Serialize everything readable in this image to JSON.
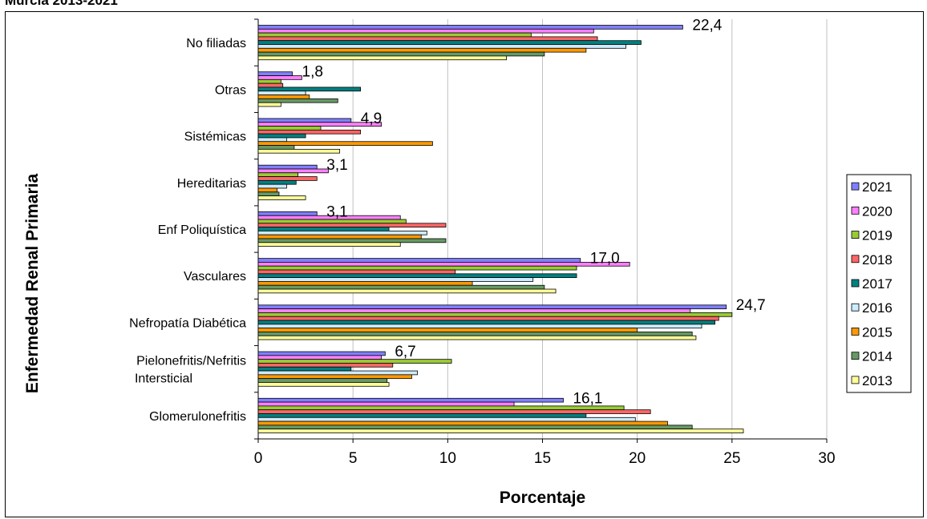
{
  "chart_data": {
    "type": "bar",
    "orientation": "horizontal",
    "title_fragment": "Murcia 2013-2021",
    "xlabel": "Porcentaje",
    "ylabel": "Enfermedad Renal Primaria",
    "xlim": [
      0,
      30
    ],
    "xticks": [
      "0",
      "5",
      "10",
      "15",
      "20",
      "25",
      "30"
    ],
    "grid": "vertical",
    "legend_position": "right",
    "categories": [
      "No filiadas",
      "Otras",
      "Sistémicas",
      "Hereditarias",
      "Enf Poliquística",
      "Vasculares",
      "Nefropatía Diabética",
      "Pielonefritis/Nefritis Intersticial",
      "Glomerulonefritis"
    ],
    "category_lines": [
      [
        "No filiadas"
      ],
      [
        "Otras"
      ],
      [
        "Sistémicas"
      ],
      [
        "Hereditarias"
      ],
      [
        "Enf Poliquística"
      ],
      [
        "Vasculares"
      ],
      [
        "Nefropatía Diabética"
      ],
      [
        "Pielonefritis/Nefritis",
        "Intersticial"
      ],
      [
        "Glomerulonefritis"
      ]
    ],
    "series": [
      {
        "name": "2021",
        "color": "#8080ff",
        "values": [
          22.4,
          1.8,
          4.9,
          3.1,
          3.1,
          17.0,
          24.7,
          6.7,
          16.1
        ]
      },
      {
        "name": "2020",
        "color": "#ff80ff",
        "values": [
          17.7,
          2.3,
          6.5,
          3.7,
          7.5,
          19.6,
          22.8,
          6.5,
          13.5
        ]
      },
      {
        "name": "2019",
        "color": "#99cc33",
        "values": [
          14.4,
          1.2,
          3.3,
          2.1,
          7.8,
          16.8,
          25.0,
          10.2,
          19.3
        ]
      },
      {
        "name": "2018",
        "color": "#ff6666",
        "values": [
          17.9,
          1.3,
          5.4,
          3.1,
          9.9,
          10.4,
          24.3,
          7.1,
          20.7
        ]
      },
      {
        "name": "2017",
        "color": "#008080",
        "values": [
          20.2,
          5.4,
          2.5,
          2.0,
          6.9,
          16.8,
          24.1,
          4.9,
          17.3
        ]
      },
      {
        "name": "2016",
        "color": "#ccecff",
        "values": [
          19.4,
          2.5,
          1.5,
          1.5,
          8.9,
          14.5,
          23.4,
          8.4,
          19.9
        ]
      },
      {
        "name": "2015",
        "color": "#ff9900",
        "values": [
          17.3,
          2.7,
          9.2,
          1.0,
          8.6,
          11.3,
          20.0,
          8.1,
          21.6
        ]
      },
      {
        "name": "2014",
        "color": "#669966",
        "values": [
          15.1,
          4.2,
          1.9,
          1.1,
          9.9,
          15.1,
          22.9,
          6.8,
          22.9
        ]
      },
      {
        "name": "2013",
        "color": "#ffff99",
        "values": [
          13.1,
          1.2,
          4.3,
          2.5,
          7.5,
          15.7,
          23.1,
          6.9,
          25.6
        ]
      }
    ],
    "data_labels": [
      "22,4",
      "1,8",
      "4,9",
      "3,1",
      "3,1",
      "17,0",
      "24,7",
      "6,7",
      "16,1"
    ]
  }
}
